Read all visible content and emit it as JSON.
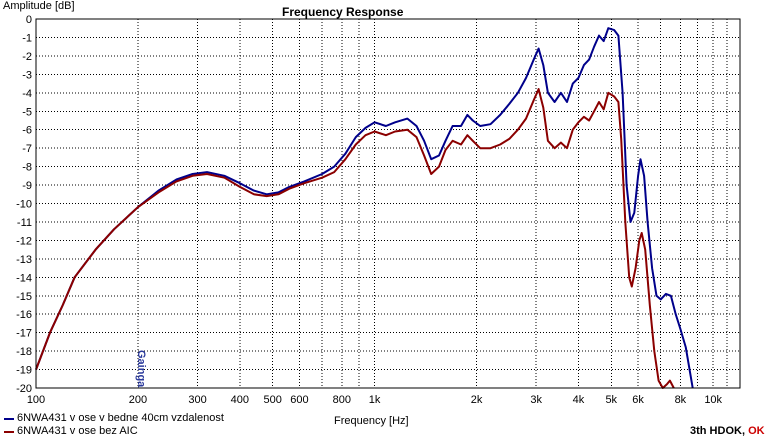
{
  "chart_data": {
    "type": "line",
    "title": "Frequency Response",
    "ylabel": "Amplitude [dB]",
    "xlabel": "Frequency [Hz]",
    "xscale": "log",
    "xlim": [
      100,
      12000
    ],
    "ylim": [
      -20,
      0
    ],
    "grid": true,
    "y_ticks": [
      "0",
      "-1",
      "-2",
      "-3",
      "-4",
      "-5",
      "-6",
      "-7",
      "-8",
      "-9",
      "-10",
      "-11",
      "-12",
      "-13",
      "-14",
      "-15",
      "-16",
      "-17",
      "-18",
      "-19",
      "-20"
    ],
    "x_ticks": [
      {
        "v": 100,
        "label": "100"
      },
      {
        "v": 200,
        "label": "200"
      },
      {
        "v": 300,
        "label": "300"
      },
      {
        "v": 400,
        "label": "400"
      },
      {
        "v": 500,
        "label": "500"
      },
      {
        "v": 600,
        "label": "600"
      },
      {
        "v": 800,
        "label": "800"
      },
      {
        "v": 1000,
        "label": "1k"
      },
      {
        "v": 2000,
        "label": "2k"
      },
      {
        "v": 3000,
        "label": "3k"
      },
      {
        "v": 4000,
        "label": "4k"
      },
      {
        "v": 5000,
        "label": "5k"
      },
      {
        "v": 6000,
        "label": "6k"
      },
      {
        "v": 8000,
        "label": "8k"
      },
      {
        "v": 10000,
        "label": "10k"
      }
    ],
    "x_minor": [
      700,
      900,
      7000,
      9000,
      11000
    ],
    "series": [
      {
        "name": "6NWA431 v ose v bedne 40cm vzdalenost",
        "color": "#00008b",
        "points": [
          [
            100,
            -19.0
          ],
          [
            110,
            -17.0
          ],
          [
            120,
            -15.5
          ],
          [
            130,
            -14.0
          ],
          [
            150,
            -12.5
          ],
          [
            170,
            -11.4
          ],
          [
            200,
            -10.2
          ],
          [
            230,
            -9.3
          ],
          [
            260,
            -8.7
          ],
          [
            290,
            -8.4
          ],
          [
            320,
            -8.3
          ],
          [
            360,
            -8.5
          ],
          [
            400,
            -8.9
          ],
          [
            440,
            -9.3
          ],
          [
            480,
            -9.5
          ],
          [
            520,
            -9.4
          ],
          [
            560,
            -9.1
          ],
          [
            620,
            -8.8
          ],
          [
            700,
            -8.4
          ],
          [
            760,
            -8.0
          ],
          [
            820,
            -7.3
          ],
          [
            880,
            -6.4
          ],
          [
            940,
            -5.9
          ],
          [
            1000,
            -5.6
          ],
          [
            1080,
            -5.8
          ],
          [
            1150,
            -5.6
          ],
          [
            1250,
            -5.4
          ],
          [
            1330,
            -5.8
          ],
          [
            1400,
            -6.6
          ],
          [
            1470,
            -7.6
          ],
          [
            1550,
            -7.4
          ],
          [
            1620,
            -6.6
          ],
          [
            1700,
            -5.8
          ],
          [
            1800,
            -5.8
          ],
          [
            1880,
            -5.2
          ],
          [
            1950,
            -5.5
          ],
          [
            2050,
            -5.8
          ],
          [
            2200,
            -5.7
          ],
          [
            2350,
            -5.2
          ],
          [
            2500,
            -4.6
          ],
          [
            2650,
            -4.0
          ],
          [
            2800,
            -3.2
          ],
          [
            2950,
            -2.2
          ],
          [
            3050,
            -1.6
          ],
          [
            3150,
            -2.5
          ],
          [
            3250,
            -4.0
          ],
          [
            3400,
            -4.5
          ],
          [
            3550,
            -4.0
          ],
          [
            3700,
            -4.5
          ],
          [
            3850,
            -3.5
          ],
          [
            4000,
            -3.2
          ],
          [
            4150,
            -2.5
          ],
          [
            4300,
            -2.2
          ],
          [
            4450,
            -1.5
          ],
          [
            4600,
            -0.9
          ],
          [
            4750,
            -1.2
          ],
          [
            4900,
            -0.5
          ],
          [
            5100,
            -0.6
          ],
          [
            5250,
            -0.9
          ],
          [
            5400,
            -4.0
          ],
          [
            5550,
            -9.0
          ],
          [
            5700,
            -11.0
          ],
          [
            5850,
            -10.5
          ],
          [
            6000,
            -8.5
          ],
          [
            6100,
            -7.6
          ],
          [
            6250,
            -8.5
          ],
          [
            6400,
            -11.0
          ],
          [
            6600,
            -13.5
          ],
          [
            6800,
            -15.0
          ],
          [
            7000,
            -15.2
          ],
          [
            7250,
            -14.9
          ],
          [
            7500,
            -15.0
          ],
          [
            7750,
            -16.0
          ],
          [
            8000,
            -16.8
          ],
          [
            8300,
            -17.8
          ],
          [
            8700,
            -20.0
          ]
        ]
      },
      {
        "name": "6NWA431 v ose bez AIC",
        "color": "#8b0000",
        "points": [
          [
            100,
            -19.0
          ],
          [
            110,
            -17.0
          ],
          [
            120,
            -15.5
          ],
          [
            130,
            -14.0
          ],
          [
            150,
            -12.5
          ],
          [
            170,
            -11.4
          ],
          [
            200,
            -10.2
          ],
          [
            230,
            -9.4
          ],
          [
            260,
            -8.8
          ],
          [
            290,
            -8.5
          ],
          [
            320,
            -8.4
          ],
          [
            360,
            -8.6
          ],
          [
            400,
            -9.1
          ],
          [
            440,
            -9.5
          ],
          [
            480,
            -9.6
          ],
          [
            520,
            -9.5
          ],
          [
            560,
            -9.2
          ],
          [
            620,
            -8.9
          ],
          [
            700,
            -8.6
          ],
          [
            760,
            -8.3
          ],
          [
            820,
            -7.6
          ],
          [
            880,
            -6.8
          ],
          [
            940,
            -6.3
          ],
          [
            1000,
            -6.1
          ],
          [
            1080,
            -6.3
          ],
          [
            1150,
            -6.1
          ],
          [
            1250,
            -6.0
          ],
          [
            1330,
            -6.4
          ],
          [
            1400,
            -7.4
          ],
          [
            1470,
            -8.4
          ],
          [
            1550,
            -8.0
          ],
          [
            1620,
            -7.1
          ],
          [
            1700,
            -6.6
          ],
          [
            1800,
            -6.8
          ],
          [
            1880,
            -6.3
          ],
          [
            1950,
            -6.6
          ],
          [
            2050,
            -7.0
          ],
          [
            2200,
            -7.0
          ],
          [
            2350,
            -6.8
          ],
          [
            2500,
            -6.5
          ],
          [
            2650,
            -6.0
          ],
          [
            2800,
            -5.4
          ],
          [
            2950,
            -4.4
          ],
          [
            3050,
            -3.8
          ],
          [
            3150,
            -4.8
          ],
          [
            3250,
            -6.6
          ],
          [
            3400,
            -7.0
          ],
          [
            3550,
            -6.7
          ],
          [
            3700,
            -7.0
          ],
          [
            3850,
            -6.0
          ],
          [
            4000,
            -5.6
          ],
          [
            4150,
            -5.3
          ],
          [
            4300,
            -5.5
          ],
          [
            4450,
            -5.0
          ],
          [
            4600,
            -4.5
          ],
          [
            4750,
            -4.9
          ],
          [
            4900,
            -4.0
          ],
          [
            5100,
            -4.2
          ],
          [
            5250,
            -4.5
          ],
          [
            5350,
            -6.5
          ],
          [
            5500,
            -11.0
          ],
          [
            5650,
            -14.0
          ],
          [
            5750,
            -14.5
          ],
          [
            5900,
            -13.5
          ],
          [
            6050,
            -12.0
          ],
          [
            6150,
            -11.6
          ],
          [
            6300,
            -12.5
          ],
          [
            6500,
            -15.5
          ],
          [
            6700,
            -18.0
          ],
          [
            6900,
            -19.6
          ],
          [
            7100,
            -20.0
          ],
          [
            7300,
            -19.8
          ],
          [
            7450,
            -19.6
          ],
          [
            7650,
            -20.0
          ]
        ]
      }
    ],
    "legend_position": "bottom-left"
  },
  "watermark": "Gainga",
  "brand_prefix": "3th HDOK,",
  "brand_suffix": "OK"
}
